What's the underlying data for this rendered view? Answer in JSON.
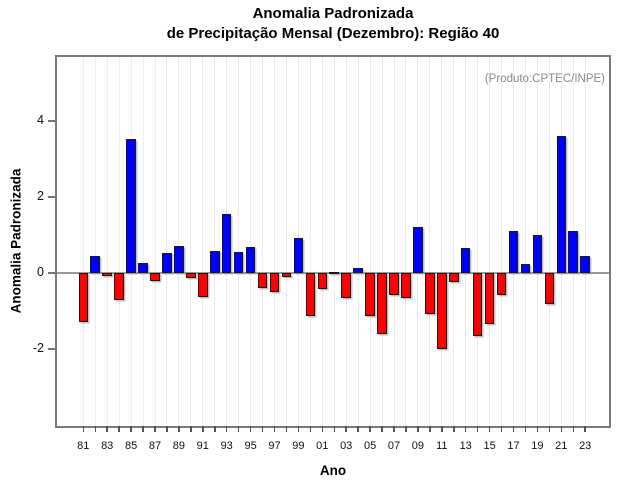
{
  "title": {
    "line1": "Anomalia Padronizada",
    "line2": "de Precipitação Mensal (Dezembro): Região 40"
  },
  "annotation": "(Produto:CPTEC/INPE)",
  "chart_data": {
    "type": "bar",
    "title": "Anomalia Padronizada de Precipitação Mensal (Dezembro): Região 40",
    "xlabel": "Ano",
    "ylabel": "Anomalia Padronizada",
    "categories": [
      "81",
      "82",
      "83",
      "84",
      "85",
      "86",
      "87",
      "88",
      "89",
      "90",
      "91",
      "92",
      "93",
      "94",
      "95",
      "96",
      "97",
      "98",
      "99",
      "00",
      "01",
      "02",
      "03",
      "04",
      "05",
      "06",
      "07",
      "08",
      "09",
      "10",
      "11",
      "12",
      "13",
      "14",
      "15",
      "16",
      "17",
      "18",
      "19",
      "20",
      "21",
      "22",
      "23"
    ],
    "values": [
      -1.3,
      0.45,
      -0.07,
      -0.7,
      3.53,
      0.27,
      -0.21,
      0.53,
      0.72,
      -0.12,
      -0.62,
      0.57,
      1.55,
      0.56,
      0.69,
      -0.4,
      -0.51,
      -0.11,
      0.91,
      -1.13,
      -0.41,
      0.03,
      -0.66,
      0.12,
      -1.13,
      -1.6,
      -0.58,
      -0.67,
      1.22,
      -1.08,
      -2.0,
      -0.23,
      0.67,
      -1.65,
      -1.33,
      -0.59,
      1.11,
      0.23,
      1.0,
      -0.81,
      3.61,
      1.11,
      0.44
    ],
    "x_tick_labels_shown": [
      "81",
      "83",
      "85",
      "87",
      "89",
      "91",
      "93",
      "95",
      "97",
      "99",
      "01",
      "03",
      "05",
      "07",
      "09",
      "11",
      "13",
      "15",
      "17",
      "19",
      "21",
      "23"
    ],
    "yticks": [
      4,
      2,
      0,
      -2
    ],
    "ylim": [
      -4.2,
      5.7
    ],
    "grid": "vertical-dotted",
    "legend": "none",
    "colors": {
      "positive_bar": "#0000ff",
      "negative_bar": "#ff0000",
      "bar_border": "#1a1a1a",
      "gridline": "#d9d9d9",
      "frame": "#7a7a7a",
      "zero_line": "#9a9a9a",
      "annotation_text": "#8a8a8a"
    }
  }
}
